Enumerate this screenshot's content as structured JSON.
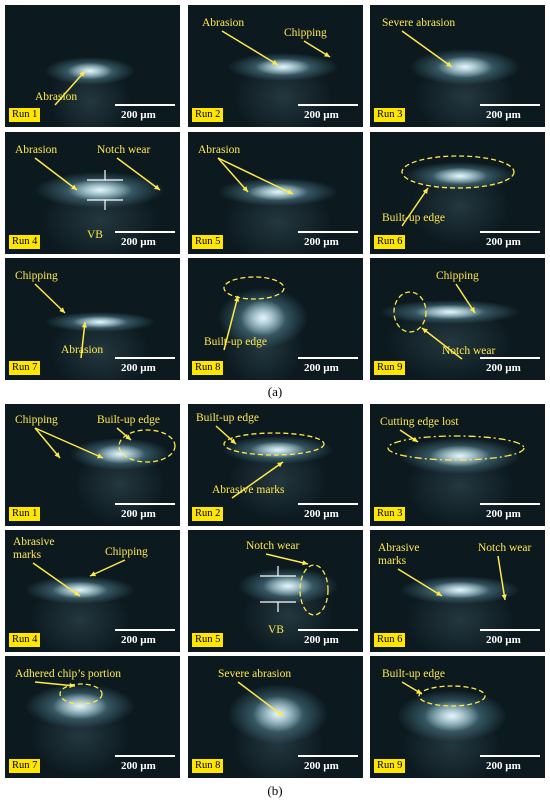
{
  "panels": [
    {
      "label": "(a)",
      "cells": [
        {
          "run": "Run 1",
          "scale": "200 µm",
          "annotations": [
            "Abrasion"
          ]
        },
        {
          "run": "Run 2",
          "scale": "200 µm",
          "annotations": [
            "Abrasion",
            "Chipping"
          ]
        },
        {
          "run": "Run 3",
          "scale": "200 µm",
          "annotations": [
            "Severe abrasion"
          ]
        },
        {
          "run": "Run 4",
          "scale": "200 µm",
          "annotations": [
            "Abrasion",
            "Notch wear",
            "VB"
          ]
        },
        {
          "run": "Run 5",
          "scale": "200 µm",
          "annotations": [
            "Abrasion"
          ]
        },
        {
          "run": "Run 6",
          "scale": "200 µm",
          "annotations": [
            "Built-up edge"
          ]
        },
        {
          "run": "Run 7",
          "scale": "200 µm",
          "annotations": [
            "Chipping",
            "Abrasion"
          ]
        },
        {
          "run": "Run 8",
          "scale": "200 µm",
          "annotations": [
            "Built-up edge"
          ]
        },
        {
          "run": "Run 9",
          "scale": "200 µm",
          "annotations": [
            "Chipping",
            "Notch wear"
          ]
        }
      ]
    },
    {
      "label": "(b)",
      "cells": [
        {
          "run": "Run 1",
          "scale": "200 µm",
          "annotations": [
            "Chipping",
            "Built-up edge"
          ]
        },
        {
          "run": "Run 2",
          "scale": "200 µm",
          "annotations": [
            "Built-up edge",
            "Abrasive marks"
          ]
        },
        {
          "run": "Run 3",
          "scale": "200 µm",
          "annotations": [
            "Cutting edge lost"
          ]
        },
        {
          "run": "Run 4",
          "scale": "200 µm",
          "annotations": [
            "Abrasive marks",
            "Chipping"
          ]
        },
        {
          "run": "Run 5",
          "scale": "200 µm",
          "annotations": [
            "Notch wear",
            "VB"
          ]
        },
        {
          "run": "Run 6",
          "scale": "200 µm",
          "annotations": [
            "Abrasive marks",
            "Notch wear"
          ]
        },
        {
          "run": "Run 7",
          "scale": "200 µm",
          "annotations": [
            "Adhered chip’s portion"
          ]
        },
        {
          "run": "Run 8",
          "scale": "200 µm",
          "annotations": [
            "Severe abrasion"
          ]
        },
        {
          "run": "Run 9",
          "scale": "200 µm",
          "annotations": [
            "Built-up edge"
          ]
        }
      ]
    }
  ]
}
